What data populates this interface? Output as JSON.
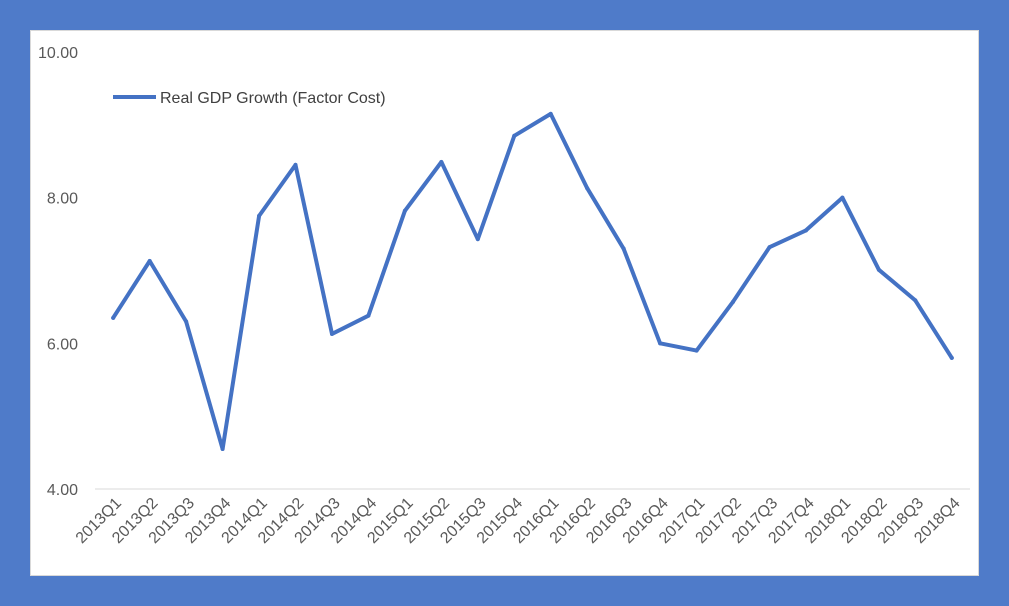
{
  "chart_data": {
    "type": "line",
    "title": "",
    "xlabel": "",
    "ylabel": "",
    "categories": [
      "2013Q1",
      "2013Q2",
      "2013Q3",
      "2013Q4",
      "2014Q1",
      "2014Q2",
      "2014Q3",
      "2014Q4",
      "2015Q1",
      "2015Q2",
      "2015Q3",
      "2015Q4",
      "2016Q1",
      "2016Q2",
      "2016Q3",
      "2016Q4",
      "2017Q1",
      "2017Q2",
      "2017Q3",
      "2017Q4",
      "2018Q1",
      "2018Q2",
      "2018Q3",
      "2018Q4"
    ],
    "series": [
      {
        "name": "Real GDP Growth (Factor Cost)",
        "values": [
          6.35,
          7.13,
          6.3,
          4.55,
          7.75,
          8.45,
          6.13,
          6.38,
          7.82,
          8.49,
          7.43,
          8.85,
          9.15,
          8.13,
          7.3,
          6.0,
          5.9,
          6.57,
          7.32,
          7.55,
          8.0,
          7.01,
          6.59,
          5.8
        ]
      }
    ],
    "ylim": [
      4,
      10
    ],
    "yticks": [
      "4.00",
      "6.00",
      "8.00",
      "10.00"
    ],
    "grid": false,
    "legend_position": "top-left",
    "colors": {
      "series": "#4472c4",
      "axis": "#d9d9d9",
      "frame": "#4f7bc9"
    }
  }
}
